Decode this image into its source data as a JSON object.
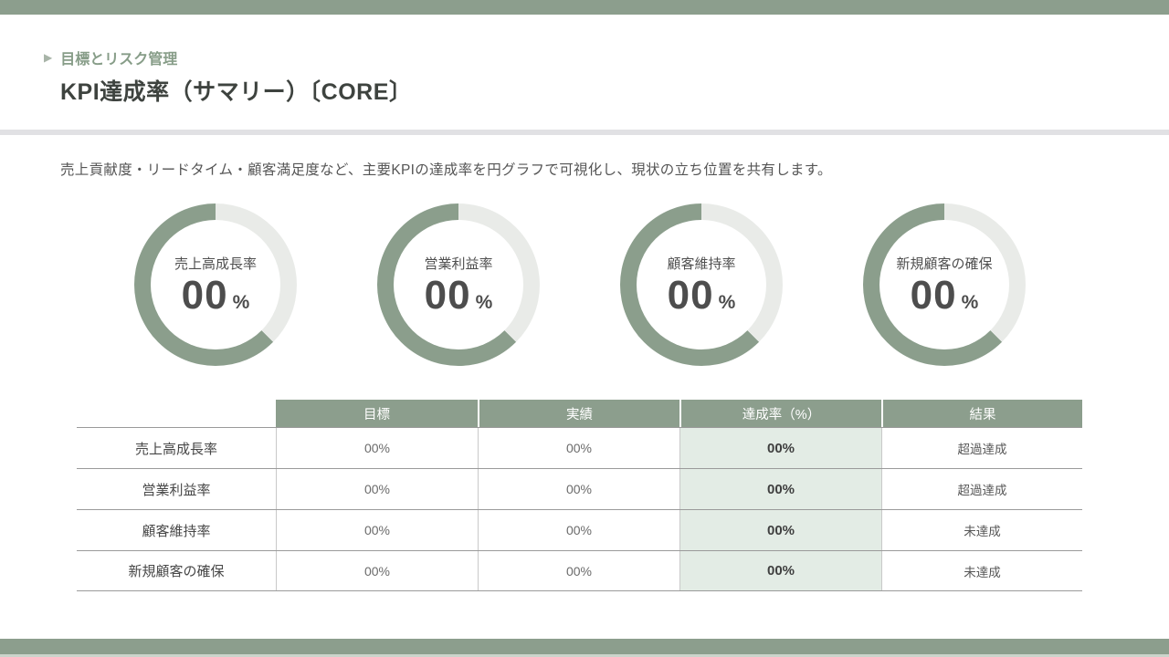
{
  "header": {
    "arrow_icon": "▶",
    "eyebrow": "目標とリスク管理",
    "title": "KPI達成率（サマリー）〔CORE〕"
  },
  "description": "売上貢献度・リードタイム・顧客満足度など、主要KPIの達成率を円グラフで可視化し、現状の立ち位置を共有します。",
  "colors": {
    "accent_green": "#8c9e8d",
    "ring_fill_green": "#8b9e8c",
    "ring_remainder_gray": "#e9ebe8",
    "highlight_cell_green": "#e3ece5",
    "divider_gray": "#e1e1e4",
    "bottom_sliver_green": "#cbd4cb"
  },
  "chart_data": [
    {
      "type": "pie",
      "subtype": "donut-gauge",
      "title": "",
      "legend_position": "none",
      "remainder_start_deg": 0,
      "remainder_end_deg": 135,
      "colors": {
        "filled": "#8b9e8c",
        "remainder": "#e9ebe8"
      },
      "items": [
        {
          "label": "売上高成長率",
          "value_text": "00",
          "unit": "%",
          "filled_fraction": 0.625
        },
        {
          "label": "営業利益率",
          "value_text": "00",
          "unit": "%",
          "filled_fraction": 0.625
        },
        {
          "label": "顧客維持率",
          "value_text": "00",
          "unit": "%",
          "filled_fraction": 0.625
        },
        {
          "label": "新規顧客の確保",
          "value_text": "00",
          "unit": "%",
          "filled_fraction": 0.625
        }
      ]
    },
    {
      "type": "table",
      "columns": [
        "",
        "目標",
        "実績",
        "達成率（%）",
        "結果"
      ],
      "highlighted_column": "達成率（%）",
      "rows": [
        {
          "label": "売上高成長率",
          "target": "00%",
          "actual": "00%",
          "rate": "00%",
          "result": "超過達成"
        },
        {
          "label": "営業利益率",
          "target": "00%",
          "actual": "00%",
          "rate": "00%",
          "result": "超過達成"
        },
        {
          "label": "顧客維持率",
          "target": "00%",
          "actual": "00%",
          "rate": "00%",
          "result": "未達成"
        },
        {
          "label": "新規顧客の確保",
          "target": "00%",
          "actual": "00%",
          "rate": "00%",
          "result": "未達成"
        }
      ]
    }
  ]
}
